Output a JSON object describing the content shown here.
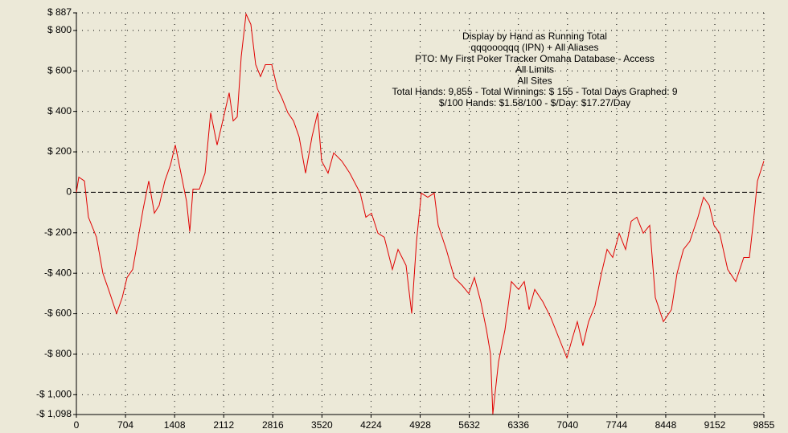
{
  "chart_data": {
    "type": "line",
    "annotations": [
      "Display by Hand as Running Total",
      "qqqoooqqq (IPN) + All Aliases",
      "PTO: My First Poker Tracker Omaha Database - Access",
      "All Limits",
      "All Sites",
      "Total Hands: 9,855 - Total Winnings: $ 155 - Total Days Graphed: 9",
      "$/100 Hands: $1.58/100 - $/Day: $17.27/Day"
    ],
    "x": [
      0,
      35,
      115,
      173,
      288,
      380,
      461,
      576,
      657,
      726,
      807,
      888,
      957,
      1037,
      1118,
      1187,
      1268,
      1349,
      1418,
      1498,
      1579,
      1625,
      1671,
      1763,
      1844,
      1925,
      2017,
      2098,
      2190,
      2248,
      2305,
      2363,
      2432,
      2501,
      2570,
      2639,
      2709,
      2801,
      2882,
      2939,
      3031,
      3112,
      3193,
      3285,
      3377,
      3458,
      3515,
      3608,
      3688,
      3804,
      3919,
      4069,
      4149,
      4230,
      4322,
      4414,
      4530,
      4610,
      4726,
      4806,
      4876,
      4945,
      5037,
      5129,
      5187,
      5302,
      5417,
      5532,
      5625,
      5705,
      5797,
      5878,
      5936,
      5970,
      6051,
      6143,
      6236,
      6339,
      6420,
      6489,
      6570,
      6685,
      6800,
      6916,
      7031,
      7112,
      7181,
      7261,
      7342,
      7434,
      7527,
      7607,
      7688,
      7780,
      7872,
      7953,
      8034,
      8126,
      8218,
      8299,
      8414,
      8529,
      8610,
      8702,
      8794,
      8910,
      8990,
      9071,
      9140,
      9221,
      9336,
      9452,
      9567,
      9647,
      9705,
      9763,
      9855
    ],
    "series": [
      {
        "color": "#e00000",
        "values": [
          0,
          75,
          56,
          -123,
          -222,
          -401,
          -480,
          -599,
          -520,
          -421,
          -381,
          -222,
          -83,
          56,
          -103,
          -64,
          56,
          135,
          234,
          95,
          -44,
          -195,
          16,
          16,
          95,
          393,
          234,
          353,
          492,
          353,
          373,
          671,
          881,
          830,
          631,
          572,
          631,
          631,
          512,
          472,
          393,
          353,
          274,
          95,
          274,
          393,
          155,
          95,
          195,
          155,
          95,
          -4,
          -123,
          -103,
          -202,
          -222,
          -381,
          -282,
          -361,
          -599,
          -242,
          -4,
          -24,
          -4,
          -163,
          -282,
          -421,
          -461,
          -500,
          -421,
          -540,
          -679,
          -798,
          -1096,
          -838,
          -679,
          -441,
          -480,
          -441,
          -580,
          -480,
          -540,
          -619,
          -719,
          -818,
          -719,
          -639,
          -758,
          -639,
          -560,
          -401,
          -282,
          -322,
          -202,
          -282,
          -143,
          -123,
          -202,
          -163,
          -520,
          -639,
          -580,
          -401,
          -282,
          -242,
          -123,
          -24,
          -64,
          -163,
          -202,
          -381,
          -441,
          -322,
          -322,
          -143,
          56,
          155
        ]
      }
    ],
    "xlim": [
      0,
      9855
    ],
    "xticks": [
      0,
      704,
      1408,
      2112,
      2816,
      3520,
      4224,
      4928,
      5632,
      6336,
      7040,
      7744,
      8448,
      9152,
      9855
    ],
    "ylim": [
      -1098,
      887
    ],
    "yticks": [
      {
        "value": 887,
        "label": "$ 887"
      },
      {
        "value": 800,
        "label": "$ 800"
      },
      {
        "value": 600,
        "label": "$ 600"
      },
      {
        "value": 400,
        "label": "$ 400"
      },
      {
        "value": 200,
        "label": "$ 200"
      },
      0,
      {
        "value": -200,
        "label": "-$ 200"
      },
      {
        "value": -400,
        "label": "-$ 400"
      },
      {
        "value": -600,
        "label": "-$ 600"
      },
      {
        "value": -800,
        "label": "-$ 800"
      },
      {
        "value": -1000,
        "label": "-$ 1,000"
      },
      {
        "value": -1098,
        "label": "-$ 1,098"
      }
    ],
    "grid": true
  }
}
